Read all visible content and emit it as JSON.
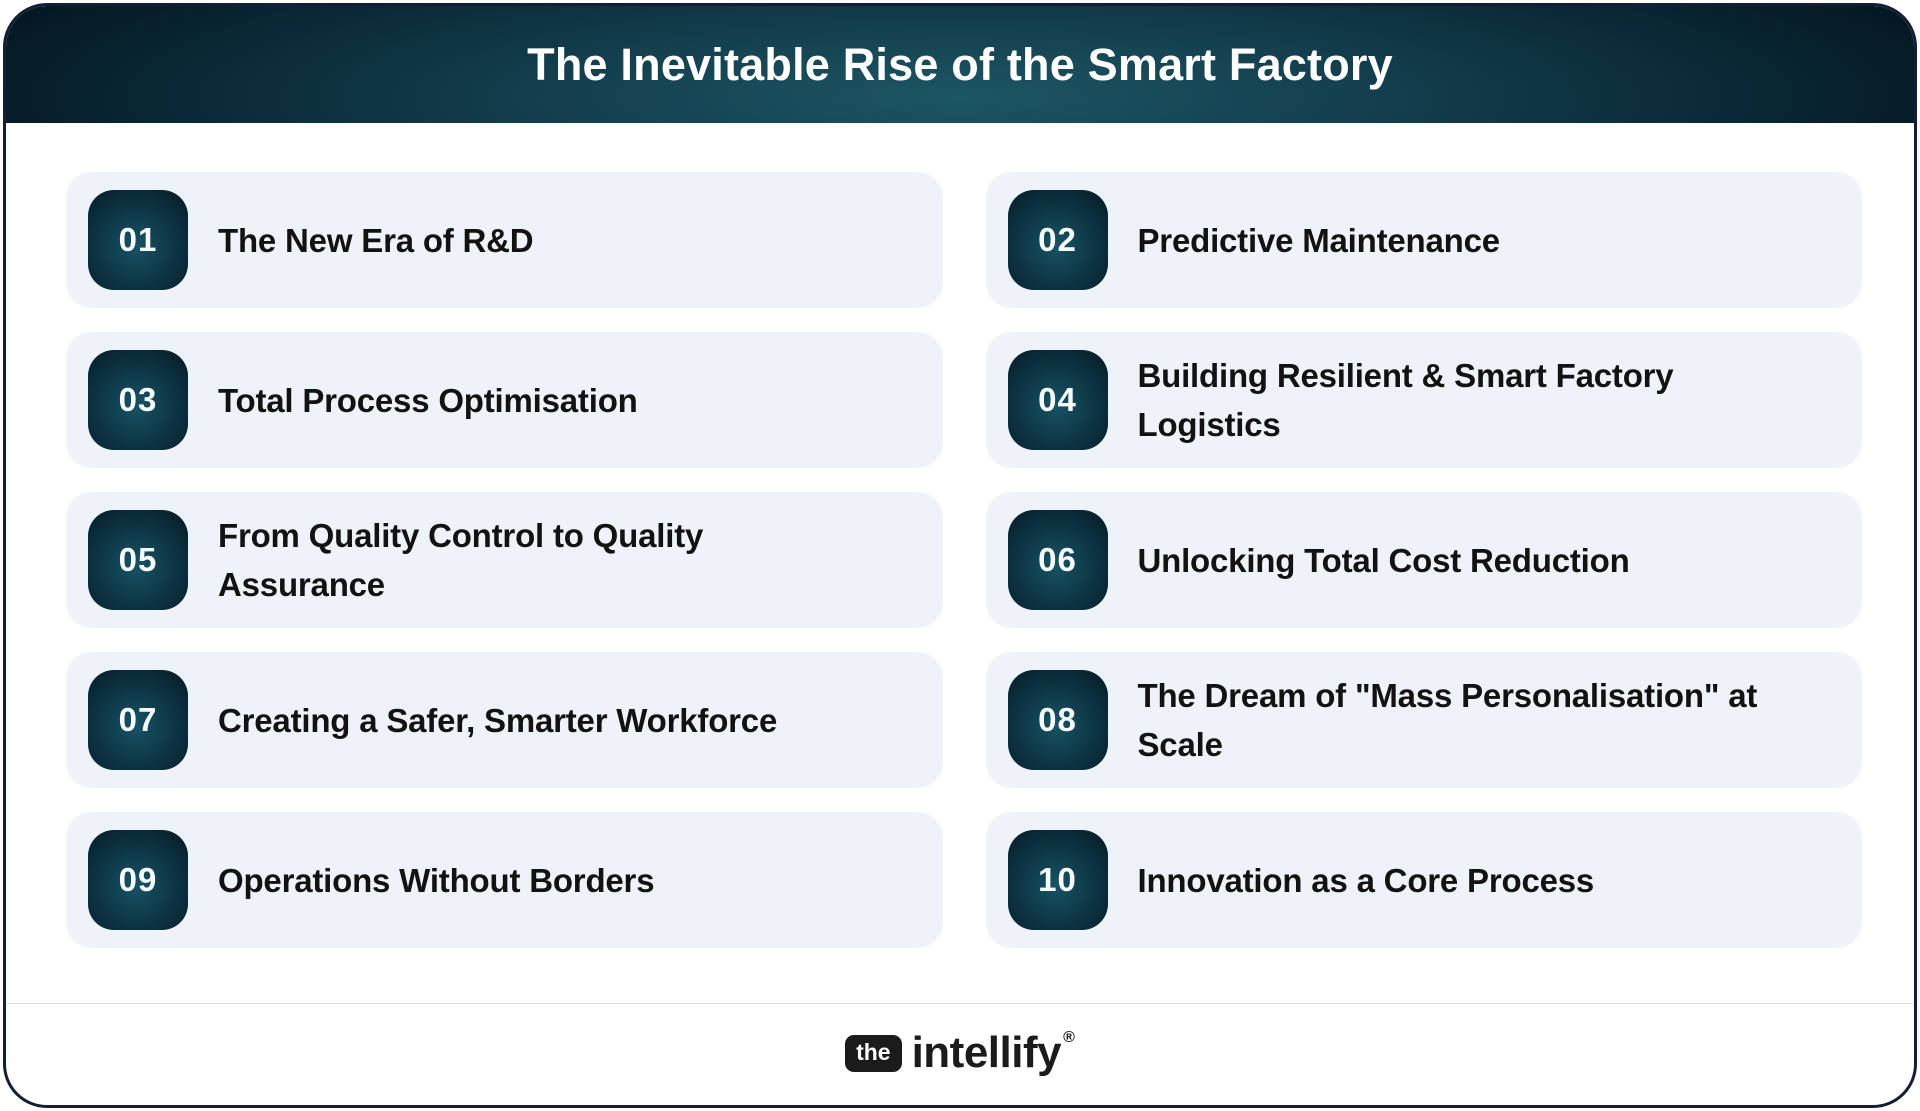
{
  "header": {
    "title": "The Inevitable Rise of the Smart Factory"
  },
  "items": [
    {
      "number": "01",
      "title": "The New Era of R&D"
    },
    {
      "number": "02",
      "title": "Predictive Maintenance"
    },
    {
      "number": "03",
      "title": "Total Process Optimisation"
    },
    {
      "number": "04",
      "title": "Building Resilient & Smart Factory\nLogistics"
    },
    {
      "number": "05",
      "title": "From Quality Control to Quality\nAssurance"
    },
    {
      "number": "06",
      "title": "Unlocking Total Cost Reduction"
    },
    {
      "number": "07",
      "title": "Creating a Safer, Smarter Workforce"
    },
    {
      "number": "08",
      "title": "The Dream of \"Mass Personalisation\" at\nScale"
    },
    {
      "number": "09",
      "title": "Operations Without Borders"
    },
    {
      "number": "10",
      "title": "Innovation as a Core Process"
    }
  ],
  "footer": {
    "logo_prefix": "the",
    "logo_name": "intellify",
    "logo_mark": "®"
  },
  "colors": {
    "header_teal_light": "#1d5664",
    "header_teal_dark": "#03141d",
    "badge_teal_light": "#175364",
    "badge_teal_dark": "#05161f",
    "card_bg": "#edf3f8",
    "text_dark": "#121212",
    "border_navy": "#141d36",
    "divider_gray": "#d8dce0",
    "logo_black": "#1b1b1b"
  }
}
